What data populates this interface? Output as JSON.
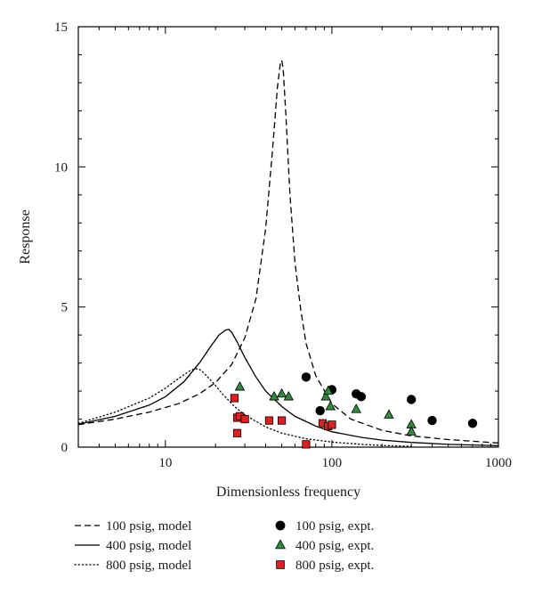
{
  "chart_data": {
    "type": "line",
    "title": "",
    "xlabel": "Dimensionless frequency",
    "ylabel": "Response",
    "xscale": "log",
    "xlim": [
      3,
      1000
    ],
    "ylim": [
      0,
      15
    ],
    "xticks": [
      10,
      100,
      1000
    ],
    "xtick_labels": [
      "10",
      "100",
      "1000"
    ],
    "yticks": [
      0,
      5,
      10,
      15
    ],
    "ytick_labels": [
      "0",
      "5",
      "10",
      "15"
    ],
    "grid": false,
    "legend_position": "bottom",
    "series": [
      {
        "name": "100 psig, model",
        "kind": "line",
        "style": "dashed",
        "color": "#000000",
        "x": [
          3,
          5,
          8,
          12,
          16,
          20,
          25,
          30,
          35,
          40,
          44,
          47,
          49,
          50,
          51,
          53,
          56,
          60,
          65,
          70,
          80,
          100,
          130,
          200,
          300,
          500,
          1000
        ],
        "y": [
          0.8,
          1.0,
          1.25,
          1.55,
          1.9,
          2.3,
          2.95,
          3.9,
          5.3,
          7.8,
          10.6,
          12.8,
          13.7,
          13.8,
          13.5,
          11.8,
          9.0,
          6.6,
          4.9,
          3.7,
          2.55,
          1.55,
          1.0,
          0.6,
          0.4,
          0.27,
          0.15
        ]
      },
      {
        "name": "400 psig, model",
        "kind": "line",
        "style": "solid",
        "color": "#000000",
        "x": [
          3,
          5,
          8,
          10,
          13,
          16,
          19,
          21,
          23,
          24,
          25,
          27,
          30,
          35,
          40,
          50,
          60,
          80,
          100,
          150,
          200,
          300,
          500,
          1000
        ],
        "y": [
          0.82,
          1.1,
          1.5,
          1.8,
          2.35,
          3.0,
          3.65,
          4.0,
          4.18,
          4.2,
          4.1,
          3.75,
          3.2,
          2.5,
          2.0,
          1.45,
          1.1,
          0.75,
          0.55,
          0.35,
          0.25,
          0.17,
          0.1,
          0.05
        ]
      },
      {
        "name": "800 psig, model",
        "kind": "line",
        "style": "dotted",
        "color": "#000000",
        "x": [
          3,
          5,
          8,
          10,
          12,
          14,
          15,
          16,
          17,
          19,
          22,
          26,
          30,
          40,
          50,
          70,
          100,
          150,
          200,
          300
        ],
        "y": [
          0.85,
          1.25,
          1.75,
          2.1,
          2.45,
          2.72,
          2.8,
          2.78,
          2.65,
          2.35,
          1.9,
          1.45,
          1.15,
          0.72,
          0.5,
          0.3,
          0.18,
          0.1,
          0.06,
          0.03
        ]
      },
      {
        "name": "100 psig, expt.",
        "kind": "scatter",
        "marker": "circle",
        "color": "#000000",
        "x": [
          70,
          85,
          100,
          140,
          150,
          300,
          400,
          700
        ],
        "y": [
          2.5,
          1.3,
          2.05,
          1.9,
          1.8,
          1.7,
          0.95,
          0.85
        ]
      },
      {
        "name": "400 psig, expt.",
        "kind": "scatter",
        "marker": "triangle",
        "color": "#2e8b3c",
        "x": [
          28,
          45,
          50,
          55,
          92,
          95,
          98,
          140,
          220,
          300,
          300
        ],
        "y": [
          2.15,
          1.8,
          1.9,
          1.8,
          1.8,
          2.0,
          1.45,
          1.35,
          1.15,
          0.8,
          0.55
        ]
      },
      {
        "name": "800 psig, expt.",
        "kind": "scatter",
        "marker": "square",
        "color": "#e02020",
        "x": [
          26,
          27,
          27,
          28,
          30,
          42,
          50,
          70,
          88,
          95,
          100
        ],
        "y": [
          1.75,
          1.05,
          0.5,
          1.1,
          1.0,
          0.95,
          0.95,
          0.1,
          0.85,
          0.75,
          0.8
        ]
      }
    ]
  }
}
